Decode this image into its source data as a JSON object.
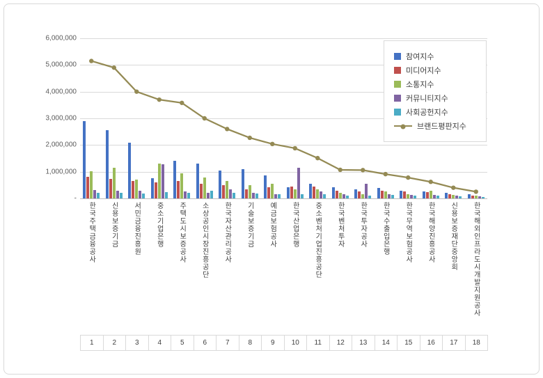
{
  "page": {
    "background": "#ffffff",
    "border_color": "#d9d9d9"
  },
  "chart_data": {
    "type": "bar",
    "title": "",
    "xlabel": "",
    "ylabel": "",
    "ylim": [
      0,
      6000000
    ],
    "grid": true,
    "legend_position": "top-right",
    "yticks": [
      {
        "label": "6,000,000",
        "value": 6000000
      },
      {
        "label": "5,000,000",
        "value": 5000000
      },
      {
        "label": "4,000,000",
        "value": 4000000
      },
      {
        "label": "3,000,000",
        "value": 3000000
      },
      {
        "label": "2,000,000",
        "value": 2000000
      },
      {
        "label": "1,000,000",
        "value": 1000000
      },
      {
        "label": "-",
        "value": 0
      }
    ],
    "categories": [
      "한국주택금융공사",
      "신용보증기금",
      "서민금융진흥원",
      "중소기업은행",
      "주택도시보증공사",
      "소상공인시장진흥공단",
      "한국자산관리공사",
      "기술보증기금",
      "예금보험공사",
      "한국산업은행",
      "중소벤처기업진흥공단",
      "한국벤처투자",
      "한국투자공사",
      "한국수출입은행",
      "한국무역보험공사",
      "한국해양진흥공사",
      "신용보증재단중앙회",
      "한국해외인프라도시개발지원공사"
    ],
    "rank_labels": [
      "1",
      "2",
      "3",
      "4",
      "5",
      "6",
      "7",
      "8",
      "9",
      "10",
      "11",
      "12",
      "13",
      "14",
      "15",
      "16",
      "17",
      "18"
    ],
    "series": [
      {
        "name": "참여지수",
        "type": "bar",
        "color": "#4472C4",
        "values": [
          2900000,
          2550000,
          2100000,
          750000,
          1400000,
          1300000,
          1050000,
          1100000,
          850000,
          430000,
          560000,
          420000,
          350000,
          380000,
          300000,
          250000,
          200000,
          150000
        ]
      },
      {
        "name": "미디어지수",
        "type": "bar",
        "color": "#C0504D",
        "values": [
          800000,
          720000,
          650000,
          600000,
          650000,
          550000,
          500000,
          350000,
          420000,
          450000,
          450000,
          300000,
          250000,
          300000,
          250000,
          240000,
          150000,
          100000
        ]
      },
      {
        "name": "소통지수",
        "type": "bar",
        "color": "#9BBB59",
        "values": [
          1020000,
          1150000,
          700000,
          1300000,
          950000,
          780000,
          650000,
          500000,
          550000,
          350000,
          350000,
          200000,
          150000,
          250000,
          150000,
          300000,
          120000,
          100000
        ]
      },
      {
        "name": "커뮤니티지수",
        "type": "bar",
        "color": "#8064A2",
        "values": [
          310000,
          300000,
          300000,
          1280000,
          250000,
          200000,
          350000,
          200000,
          150000,
          1150000,
          250000,
          150000,
          550000,
          150000,
          120000,
          120000,
          100000,
          80000
        ]
      },
      {
        "name": "사회공헌지수",
        "type": "bar",
        "color": "#4BACC6",
        "values": [
          200000,
          200000,
          180000,
          230000,
          200000,
          300000,
          200000,
          180000,
          150000,
          150000,
          150000,
          100000,
          100000,
          120000,
          100000,
          100000,
          80000,
          60000
        ]
      },
      {
        "name": "브랜드평판지수",
        "type": "line",
        "color": "#948A54",
        "values": [
          5150000,
          4900000,
          4000000,
          3700000,
          3580000,
          3000000,
          2600000,
          2270000,
          2040000,
          1880000,
          1510000,
          1070000,
          1060000,
          910000,
          780000,
          620000,
          400000,
          250000
        ]
      }
    ]
  }
}
